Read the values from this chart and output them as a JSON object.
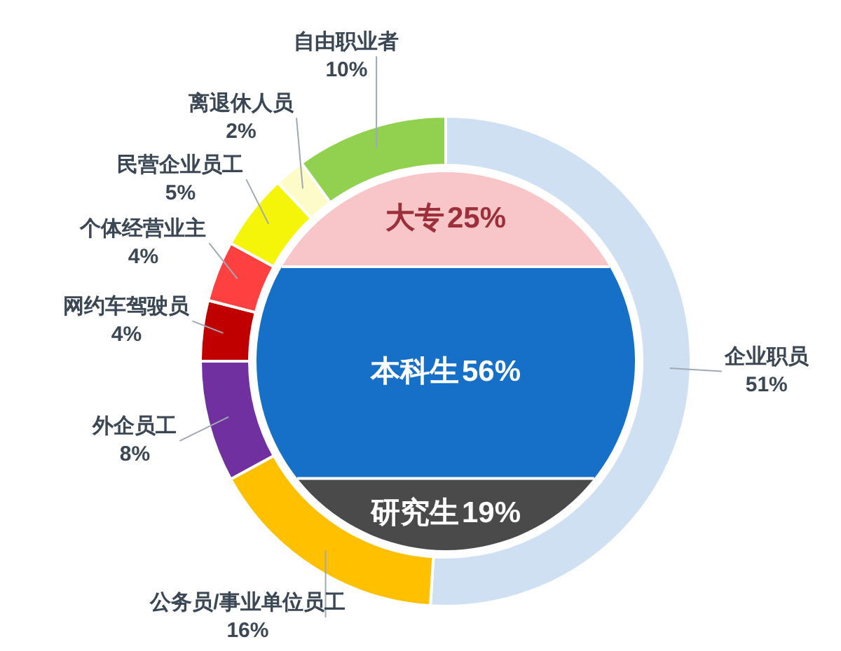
{
  "chart_data": [
    {
      "type": "donut",
      "categories": [
        "企业职员",
        "公务员/事业单位员工",
        "外企员工",
        "网约车驾驶员",
        "个体经营业主",
        "民营企业员工",
        "离退休人员",
        "自由职业者"
      ],
      "values": [
        51,
        16,
        8,
        4,
        4,
        5,
        2,
        10
      ],
      "value_labels": [
        "51%",
        "16%",
        "8%",
        "4%",
        "4%",
        "5%",
        "2%",
        "10%"
      ],
      "colors": [
        "#cfe0f2",
        "#ffc000",
        "#7030a0",
        "#c00000",
        "#ff4040",
        "#f5f50a",
        "#fdfcc8",
        "#92d050"
      ],
      "legend": false
    },
    {
      "type": "other",
      "categories": [
        "大专",
        "本科生",
        "研究生"
      ],
      "values": [
        25,
        56,
        19
      ],
      "value_labels": [
        "25%",
        "56%",
        "19%"
      ],
      "colors": [
        "#f8c5c8",
        "#1670c8",
        "#4a4a4a"
      ]
    }
  ]
}
